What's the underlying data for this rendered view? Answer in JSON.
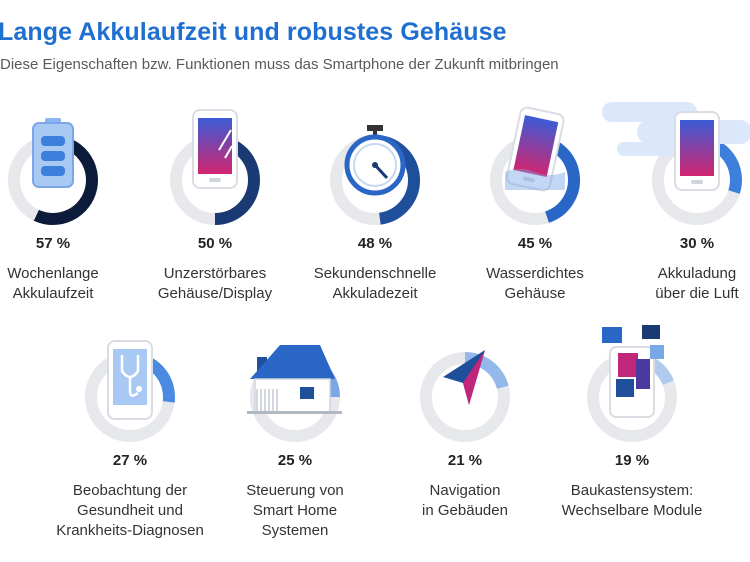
{
  "header": {
    "title": "Lange Akkulaufzeit und robustes Gehäuse",
    "subtitle": "Diese Eigenschaften bzw. Funktionen muss das Smartphone der Zukunft mitbringen"
  },
  "chart_data": {
    "type": "donut",
    "unit": "%",
    "items": [
      {
        "value": 57,
        "label_lines": [
          "Wochenlange",
          "Akkulaufzeit"
        ],
        "percent_label": "57 %",
        "icon": "battery-icon",
        "color": "#0d1b3a"
      },
      {
        "value": 50,
        "label_lines": [
          "Unzerstörbares",
          "Gehäuse/Display"
        ],
        "percent_label": "50 %",
        "icon": "smartphone-display-icon",
        "color": "#1a3a73"
      },
      {
        "value": 48,
        "label_lines": [
          "Sekundenschnelle",
          "Akkuladezeit"
        ],
        "percent_label": "48 %",
        "icon": "stopwatch-icon",
        "color": "#1f4f9a"
      },
      {
        "value": 45,
        "label_lines": [
          "Wasserdichtes",
          "Gehäuse"
        ],
        "percent_label": "45 %",
        "icon": "waterproof-phone-icon",
        "color": "#2a66c6"
      },
      {
        "value": 30,
        "label_lines": [
          "Akkuladung",
          "über die Luft"
        ],
        "percent_label": "30 %",
        "icon": "wireless-charging-phone-icon",
        "color": "#3d7fdc"
      },
      {
        "value": 27,
        "label_lines": [
          "Beobachtung der",
          "Gesundheit und",
          "Krankheits-Diagnosen"
        ],
        "percent_label": "27 %",
        "icon": "health-stethoscope-phone-icon",
        "color": "#4a8ae0"
      },
      {
        "value": 25,
        "label_lines": [
          "Steuerung von",
          "Smart Home",
          "Systemen"
        ],
        "percent_label": "25 %",
        "icon": "smart-home-icon",
        "color": "#7aa7e6"
      },
      {
        "value": 21,
        "label_lines": [
          "Navigation",
          "in Gebäuden"
        ],
        "percent_label": "21 %",
        "icon": "navigation-arrow-icon",
        "color": "#95b8ea"
      },
      {
        "value": 19,
        "label_lines": [
          "Baukastensystem:",
          "Wechselbare Module"
        ],
        "percent_label": "19 %",
        "icon": "modular-phone-icon",
        "color": "#b0c9ee"
      }
    ]
  }
}
